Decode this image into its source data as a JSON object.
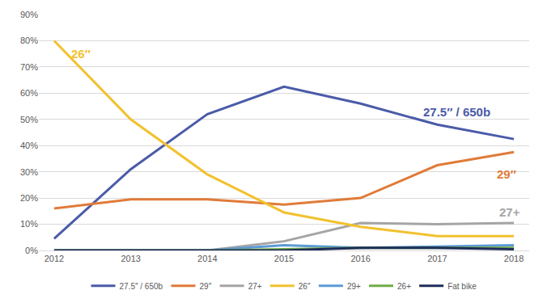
{
  "chart_data": {
    "type": "line",
    "x": [
      2012,
      2013,
      2014,
      2015,
      2016,
      2017,
      2018
    ],
    "series": [
      {
        "name": "27.5″ / 650b",
        "color": "#4a5ba8",
        "values": [
          4.5,
          31,
          52,
          62.5,
          56,
          48,
          42.5
        ]
      },
      {
        "name": "29″",
        "color": "#e07b39",
        "values": [
          16,
          19.5,
          19.5,
          17.5,
          20,
          32.5,
          37.5
        ]
      },
      {
        "name": "27+",
        "color": "#a5a5a5",
        "values": [
          0,
          0,
          0,
          3.5,
          10.5,
          10,
          10.5
        ]
      },
      {
        "name": "26″",
        "color": "#f2c12e",
        "values": [
          80,
          50,
          29,
          14.5,
          9,
          5.5,
          5.5
        ]
      },
      {
        "name": "29+",
        "color": "#5b9bd5",
        "values": [
          0,
          0,
          0,
          2,
          1,
          1.5,
          2
        ]
      },
      {
        "name": "26+",
        "color": "#70ad47",
        "values": [
          0,
          0,
          0,
          0.5,
          1,
          1,
          1
        ]
      },
      {
        "name": "Fat bike",
        "color": "#1f2d5a",
        "values": [
          0,
          0,
          0,
          0,
          1,
          1,
          0.5
        ]
      }
    ],
    "xlim": [
      2011.8,
      2018.2
    ],
    "xticks": [
      2012,
      2013,
      2014,
      2015,
      2016,
      2017,
      2018
    ],
    "ylim": [
      0,
      90
    ],
    "yticks": [
      {
        "value": 0,
        "label": "0%"
      },
      {
        "value": 10,
        "label": "10%"
      },
      {
        "value": 20,
        "label": "20%"
      },
      {
        "value": 30,
        "label": "30%"
      },
      {
        "value": 40,
        "label": "40%"
      },
      {
        "value": 50,
        "label": "50%"
      },
      {
        "value": 60,
        "label": "60%"
      },
      {
        "value": 70,
        "label": "70%"
      },
      {
        "value": 80,
        "label": "80%"
      },
      {
        "value": 90,
        "label": "90%"
      }
    ],
    "grid": true,
    "legend": "bottom",
    "annotations": [
      {
        "text": "26″",
        "x": 2012.35,
        "y": 75,
        "color": "#f2c12e"
      },
      {
        "text": "27.5″ / 650b",
        "x": 2017.25,
        "y": 53,
        "color": "#4a5ba8"
      },
      {
        "text": "29″",
        "x": 2017.9,
        "y": 29,
        "color": "#e07b39"
      },
      {
        "text": "27+",
        "x": 2017.95,
        "y": 14.5,
        "color": "#a5a5a5"
      }
    ]
  }
}
